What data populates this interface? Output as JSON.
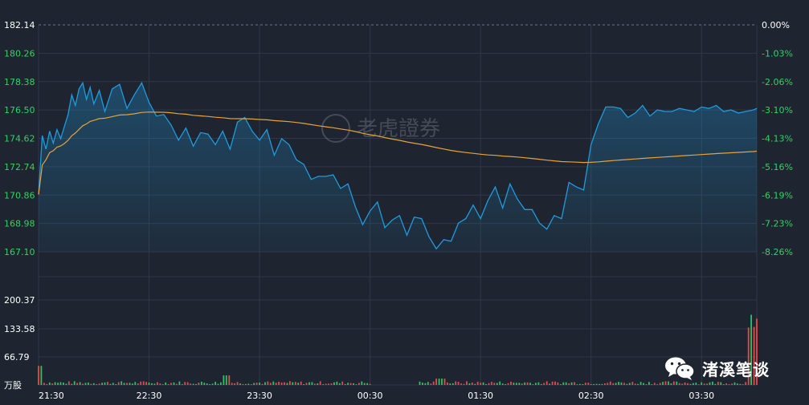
{
  "watermark": {
    "brand": "老虎證券",
    "account_name": "渚溪笔谈"
  },
  "colors": {
    "background": "#1f2530",
    "grid": "#2e3847",
    "price_line": "#1e9be0",
    "avg_line": "#e8a23b",
    "up": "#e54a4a",
    "down": "#2ec25f",
    "axis_text": "#ffffff",
    "pct_text": "#2ed35f"
  },
  "chart_data": {
    "type": "line",
    "price_axis": {
      "ticks": [
        "182.14",
        "180.26",
        "178.38",
        "176.50",
        "174.62",
        "172.74",
        "170.86",
        "168.98",
        "167.10"
      ],
      "ylim": [
        167.1,
        182.14
      ]
    },
    "pct_axis": {
      "ticks": [
        "0.00%",
        "-1.03%",
        "-2.06%",
        "-3.10%",
        "-4.13%",
        "-5.16%",
        "-6.19%",
        "-7.23%",
        "-8.26%"
      ]
    },
    "volume_axis": {
      "ticks": [
        "200.37",
        "133.58",
        "66.79",
        "万股"
      ],
      "ylim": [
        0,
        267.16
      ]
    },
    "time_labels": [
      "21:30",
      "22:30",
      "23:30",
      "00:30",
      "01:30",
      "02:30",
      "03:30"
    ],
    "series": [
      {
        "x_minutes": [
          0,
          2,
          4,
          6,
          8,
          10,
          12,
          14,
          16,
          18,
          20,
          22,
          24,
          26,
          28,
          30,
          33,
          36,
          40,
          44,
          48,
          52,
          56,
          60,
          64,
          68,
          72,
          76,
          80,
          84,
          88,
          92,
          96,
          100,
          104,
          108,
          112,
          116,
          120,
          124,
          128,
          132,
          136,
          140,
          144,
          148,
          152,
          156,
          160,
          164,
          168,
          172,
          176,
          180,
          184,
          188,
          192,
          196,
          200,
          204,
          208,
          212,
          216,
          220,
          224,
          228,
          232,
          236,
          240,
          244,
          248,
          252,
          256,
          260,
          264,
          268,
          272,
          276,
          280,
          284,
          288,
          292,
          296,
          300,
          304,
          308,
          312,
          316,
          320,
          324,
          328,
          332,
          336,
          340,
          344,
          348,
          352,
          356,
          360,
          364,
          368,
          372,
          376,
          380,
          384,
          388,
          390
        ],
        "values": [
          170.9,
          174.8,
          173.9,
          175.1,
          174.3,
          175.2,
          174.6,
          175.4,
          176.2,
          177.5,
          176.8,
          177.9,
          178.3,
          177.2,
          178.0,
          176.9,
          177.8,
          176.4,
          177.9,
          178.2,
          176.6,
          177.5,
          178.3,
          177.0,
          176.1,
          176.2,
          175.5,
          174.5,
          175.3,
          174.1,
          175.0,
          174.9,
          174.2,
          175.1,
          173.9,
          175.7,
          176.0,
          175.1,
          174.5,
          175.2,
          173.5,
          174.6,
          174.2,
          173.2,
          172.9,
          171.9,
          172.1,
          172.1,
          172.2,
          171.3,
          171.6,
          170.1,
          168.9,
          169.8,
          170.4,
          168.7,
          169.2,
          169.5,
          168.2,
          169.4,
          169.3,
          168.1,
          167.3,
          167.9,
          167.8,
          169.0,
          169.3,
          170.2,
          169.3,
          170.5,
          171.4,
          170.0,
          171.6,
          170.6,
          169.9,
          169.9,
          169.0,
          168.6,
          169.5,
          169.3,
          171.7,
          171.4,
          171.2,
          174.2,
          175.6,
          176.7,
          176.7,
          176.6,
          176.0,
          176.3,
          176.8,
          176.1,
          176.5,
          176.4,
          176.4,
          176.6,
          176.5,
          176.4,
          176.7,
          176.6,
          176.8,
          176.4,
          176.5,
          176.3,
          176.4,
          176.5,
          176.6
        ],
        "name": ""
      }
    ]
  }
}
